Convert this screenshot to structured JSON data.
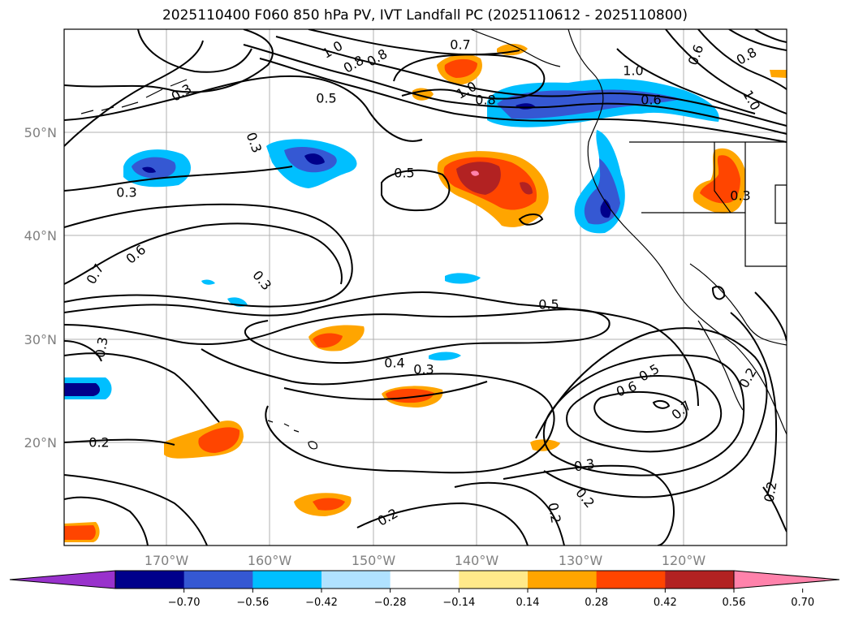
{
  "title": "2025110400 F060 850 hPa PV, IVT Landfall PC (2025110612 - 2025110800)",
  "map": {
    "lat_labels": [
      "50°N",
      "40°N",
      "30°N",
      "20°N"
    ],
    "lon_labels": [
      "170°W",
      "160°W",
      "150°W",
      "140°W",
      "130°W",
      "120°W"
    ],
    "grid_color": "#b0b0b0",
    "contour_labels": [
      "0.3",
      "1.0",
      "0.8",
      "0.7",
      "1.0",
      "0.8",
      "0.5",
      "1.0",
      "0.8",
      "0.6",
      "0.8",
      "0.6",
      "1.0",
      "0.3",
      "0.5",
      "0.3",
      "0.6",
      "0.7",
      "0.3",
      "0.3",
      "0.5",
      "0.4",
      "0.3",
      "0.5",
      "0.6",
      "0.7",
      "0.2",
      "0.2",
      "0.3",
      "0.2",
      "0.2",
      "0.2",
      "0.2",
      "0.3"
    ]
  },
  "colorbar": {
    "colors": [
      "#9932cc",
      "#00008b",
      "#3558d3",
      "#00bfff",
      "#b0e2ff",
      "#ffffff",
      "#ffe98a",
      "#ffa500",
      "#ff4500",
      "#b22222",
      "#ff82ab"
    ],
    "ticks": [
      "−0.70",
      "−0.56",
      "−0.42",
      "−0.28",
      "−0.14",
      "0.14",
      "0.28",
      "0.42",
      "0.56",
      "0.70"
    ]
  }
}
